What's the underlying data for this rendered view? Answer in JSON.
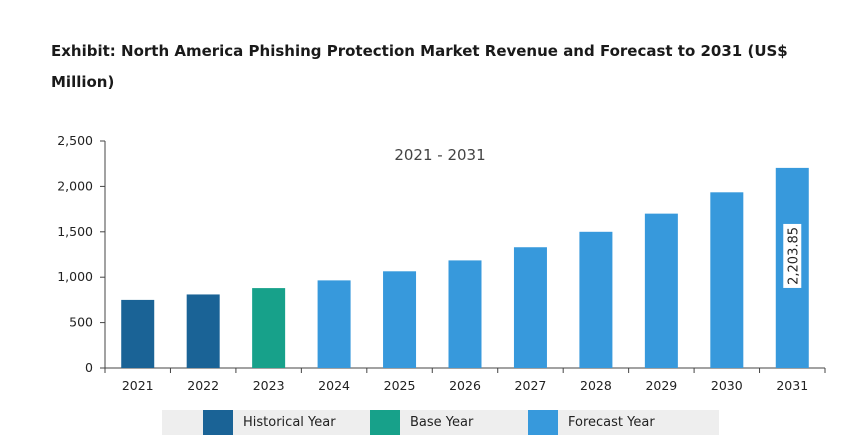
{
  "title": "Exhibit: North America Phishing Protection Market Revenue and Forecast to 2031 (US$ Million)",
  "chart_data": {
    "type": "bar",
    "title": "Exhibit: North America Phishing Protection Market Revenue and Forecast to 2031 (US$ Million)",
    "subtitle": "2021 - 2031",
    "xlabel": "",
    "ylabel": "",
    "ylim": [
      0,
      2500
    ],
    "yticks": [
      0,
      500,
      1000,
      1500,
      2000,
      2500
    ],
    "ytick_labels": [
      "0",
      "500",
      "1,000",
      "1,500",
      "2,000",
      "2,500"
    ],
    "grid": false,
    "legend_position": "bottom",
    "categories": [
      "2021",
      "2022",
      "2023",
      "2024",
      "2025",
      "2026",
      "2027",
      "2028",
      "2029",
      "2030",
      "2031"
    ],
    "values": [
      750,
      810,
      880,
      965,
      1065,
      1185,
      1330,
      1500,
      1700,
      1935,
      2203.85
    ],
    "bar_groups": [
      "historical",
      "historical",
      "base",
      "forecast",
      "forecast",
      "forecast",
      "forecast",
      "forecast",
      "forecast",
      "forecast",
      "forecast"
    ],
    "data_labels": [
      {
        "category": "2031",
        "text": "2,203.85"
      }
    ],
    "colors": {
      "historical": "#1a6396",
      "base": "#17a18a",
      "forecast": "#3799dc"
    },
    "legend": [
      {
        "key": "historical",
        "label": "Historical Year"
      },
      {
        "key": "base",
        "label": "Base Year"
      },
      {
        "key": "forecast",
        "label": "Forecast Year"
      }
    ]
  }
}
